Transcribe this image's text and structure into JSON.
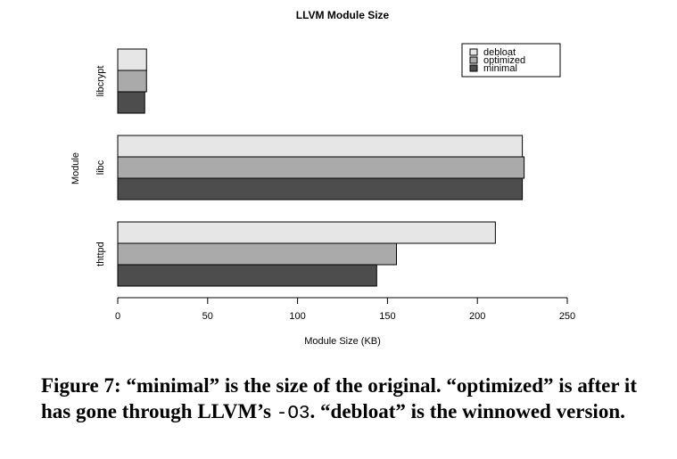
{
  "chart_data": {
    "type": "bar",
    "orientation": "horizontal",
    "title": "LLVM Module Size",
    "xlabel": "Module Size (KB)",
    "ylabel": "Module",
    "xlim": [
      0,
      250
    ],
    "xticks": [
      0,
      50,
      100,
      150,
      200,
      250
    ],
    "categories": [
      "thttpd",
      "libc",
      "libcrypt"
    ],
    "series": [
      {
        "name": "debloat",
        "color": "#e6e6e6",
        "values": [
          210,
          225,
          16
        ]
      },
      {
        "name": "optimized",
        "color": "#aaaaaa",
        "values": [
          155,
          226,
          16
        ]
      },
      {
        "name": "minimal",
        "color": "#4d4d4d",
        "values": [
          144,
          225,
          15
        ]
      }
    ],
    "legend_position": "top-right",
    "grid": false
  },
  "caption": {
    "prefix": "Figure 7: “minimal” is the size of the original. “optimized” is after it has gone through LLVM’s ",
    "code": "-O3",
    "suffix": ". “debloat” is the winnowed version."
  }
}
